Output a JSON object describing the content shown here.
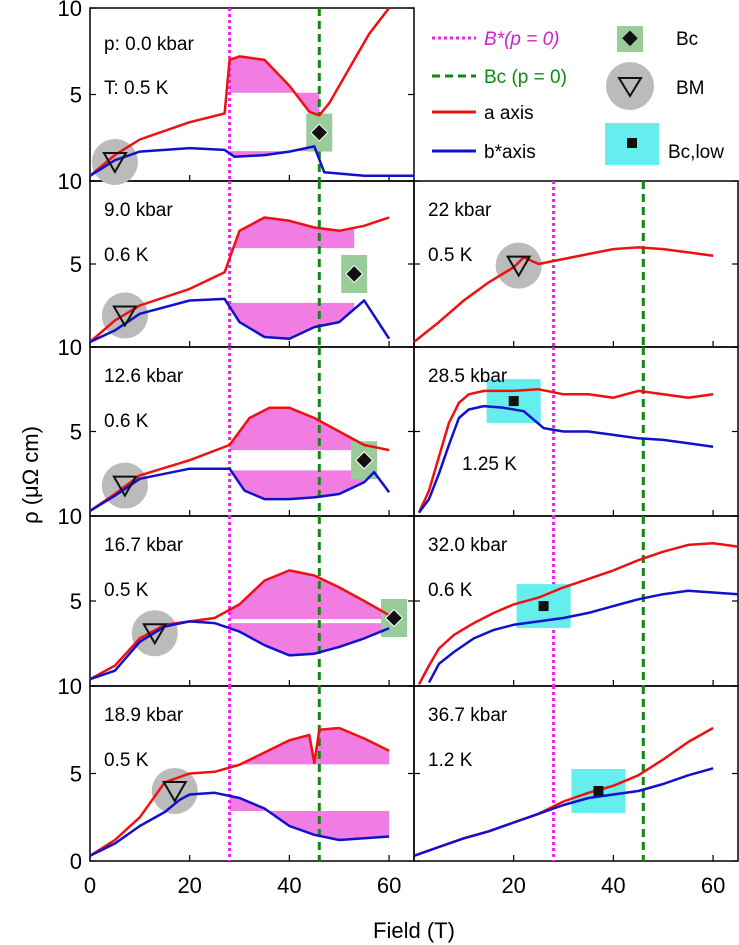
{
  "figure": {
    "xlabel": "Field (T)",
    "ylabel": "ρ (μΩ cm)",
    "x_ticks": [
      "0",
      "20",
      "40",
      "60"
    ],
    "y_ticks": [
      "0",
      "5",
      "10"
    ]
  },
  "legend": {
    "b_star": "B*(p = 0)",
    "bc_line": "Bc (p = 0)",
    "a_axis": "a axis",
    "b_axis": "b*axis",
    "bc_marker": "Bc",
    "bm_marker": "BM",
    "bc_low_marker": "Bc,low"
  },
  "colors": {
    "a_axis": "#ee1111",
    "b_axis": "#1111cc",
    "b_star_line": "#ee22ee",
    "bc_line": "#118811",
    "fill": "#ee66dd",
    "bc_box": "#99cc99",
    "bc_low_box": "#66eeee",
    "bm_circle": "#bbbbbb"
  },
  "reference_lines": {
    "b_star_field": 28,
    "bc_field": 46
  },
  "chart_data": [
    {
      "type": "line",
      "panel": "left-1",
      "pressure": "p: 0.0 kbar",
      "temperature": "T: 0.5 K",
      "xlim": [
        0,
        65
      ],
      "ylim": [
        0,
        10
      ],
      "ytick_labels": [
        "5",
        "10"
      ],
      "series": [
        {
          "name": "a axis",
          "x": [
            0,
            5,
            10,
            20,
            27,
            28,
            30,
            35,
            40,
            44,
            46,
            48,
            52,
            56,
            60
          ],
          "y": [
            0.3,
            1.5,
            2.4,
            3.4,
            3.9,
            7.0,
            7.2,
            7.0,
            5.5,
            4.0,
            3.8,
            4.5,
            6.5,
            8.5,
            10.0
          ]
        },
        {
          "name": "b* axis",
          "x": [
            0,
            5,
            10,
            20,
            27,
            29,
            35,
            40,
            45,
            47,
            55,
            65
          ],
          "y": [
            0.3,
            1.2,
            1.7,
            1.9,
            1.8,
            1.4,
            1.5,
            1.7,
            2.0,
            0.5,
            0.3,
            0.3
          ]
        }
      ],
      "bc": [
        46,
        2.8
      ],
      "bm": [
        5,
        1.1
      ]
    },
    {
      "type": "line",
      "panel": "left-2",
      "pressure": "9.0 kbar",
      "temperature": "0.6 K",
      "xlim": [
        0,
        65
      ],
      "ylim": [
        0,
        10
      ],
      "ytick_labels": [
        "5",
        "10"
      ],
      "series": [
        {
          "name": "a axis",
          "x": [
            0,
            5,
            10,
            20,
            27,
            30,
            35,
            40,
            45,
            50,
            55,
            60
          ],
          "y": [
            0.3,
            1.6,
            2.5,
            3.5,
            4.5,
            7.0,
            7.8,
            7.6,
            7.2,
            7.0,
            7.3,
            7.8
          ]
        },
        {
          "name": "b* axis",
          "x": [
            0,
            5,
            10,
            20,
            27,
            30,
            35,
            40,
            45,
            50,
            55,
            60
          ],
          "y": [
            0.3,
            1.0,
            2.0,
            2.8,
            2.9,
            1.5,
            0.6,
            0.5,
            1.2,
            1.5,
            2.8,
            0.5
          ]
        }
      ],
      "bc": [
        53,
        4.4
      ],
      "bm": [
        7,
        1.9
      ]
    },
    {
      "type": "line",
      "panel": "left-3",
      "pressure": "12.6 kbar",
      "temperature": "0.6 K",
      "xlim": [
        0,
        65
      ],
      "ylim": [
        0,
        10
      ],
      "ytick_labels": [
        "5",
        "10"
      ],
      "series": [
        {
          "name": "a axis",
          "x": [
            0,
            5,
            10,
            20,
            28,
            32,
            36,
            40,
            45,
            50,
            55,
            60
          ],
          "y": [
            0.3,
            1.3,
            2.4,
            3.3,
            4.2,
            5.8,
            6.4,
            6.4,
            5.8,
            5.0,
            4.2,
            3.9
          ]
        },
        {
          "name": "b* axis",
          "x": [
            0,
            5,
            10,
            20,
            28,
            31,
            35,
            40,
            45,
            50,
            55,
            57,
            60
          ],
          "y": [
            0.3,
            1.2,
            2.2,
            2.8,
            2.8,
            1.5,
            1.0,
            1.0,
            1.1,
            1.3,
            2.0,
            2.6,
            1.4
          ]
        }
      ],
      "bc": [
        55,
        3.3
      ],
      "bm": [
        7,
        1.8
      ]
    },
    {
      "type": "line",
      "panel": "left-4",
      "pressure": "16.7 kbar",
      "temperature": "0.5 K",
      "xlim": [
        0,
        65
      ],
      "ylim": [
        0,
        10
      ],
      "ytick_labels": [
        "5",
        "10"
      ],
      "series": [
        {
          "name": "a axis",
          "x": [
            0,
            5,
            10,
            15,
            20,
            25,
            30,
            35,
            40,
            45,
            50,
            55,
            61
          ],
          "y": [
            0.4,
            1.2,
            2.8,
            3.6,
            3.8,
            4.0,
            4.8,
            6.2,
            6.8,
            6.5,
            5.8,
            5.0,
            4.0
          ]
        },
        {
          "name": "b* axis",
          "x": [
            0,
            5,
            10,
            15,
            20,
            25,
            30,
            35,
            40,
            45,
            50,
            55,
            60
          ],
          "y": [
            0.4,
            0.9,
            2.6,
            3.5,
            3.8,
            3.7,
            3.2,
            2.4,
            1.8,
            1.9,
            2.3,
            2.8,
            3.4
          ]
        }
      ],
      "bc": [
        61,
        4.0
      ],
      "bm": [
        13,
        3.1
      ]
    },
    {
      "type": "line",
      "panel": "left-5",
      "pressure": "18.9 kbar",
      "temperature": "0.5 K",
      "xlim": [
        0,
        65
      ],
      "ylim": [
        0,
        10
      ],
      "ytick_labels": [
        "0",
        "5",
        "10"
      ],
      "series": [
        {
          "name": "a axis",
          "x": [
            0,
            5,
            10,
            15,
            20,
            25,
            30,
            35,
            40,
            44,
            45,
            46,
            50,
            55,
            60
          ],
          "y": [
            0.3,
            1.2,
            2.5,
            4.5,
            5.0,
            5.1,
            5.5,
            6.2,
            6.9,
            7.2,
            5.6,
            7.5,
            7.6,
            7.0,
            6.3
          ]
        },
        {
          "name": "b* axis",
          "x": [
            0,
            5,
            10,
            15,
            18,
            20,
            25,
            30,
            35,
            40,
            45,
            50,
            55,
            60
          ],
          "y": [
            0.3,
            1.0,
            2.0,
            2.8,
            3.5,
            3.8,
            3.9,
            3.6,
            3.0,
            2.0,
            1.5,
            1.2,
            1.3,
            1.4
          ]
        }
      ],
      "bm": [
        17,
        4.0
      ]
    },
    {
      "type": "line",
      "panel": "right-2",
      "pressure": "22 kbar",
      "temperature": "0.5 K",
      "xlim": [
        0,
        65
      ],
      "ylim": [
        0,
        10
      ],
      "series": [
        {
          "name": "a axis",
          "x": [
            0,
            5,
            10,
            15,
            20,
            22,
            25,
            30,
            35,
            40,
            45,
            50,
            55,
            60
          ],
          "y": [
            0.3,
            1.5,
            2.8,
            3.9,
            4.8,
            5.4,
            5.0,
            5.3,
            5.6,
            5.9,
            6.0,
            5.9,
            5.7,
            5.5
          ]
        }
      ],
      "bm": [
        21,
        4.9
      ]
    },
    {
      "type": "line",
      "panel": "right-3",
      "pressure": "28.5 kbar",
      "temperature": "1.25 K",
      "xlim": [
        0,
        65
      ],
      "ylim": [
        0,
        10
      ],
      "series": [
        {
          "name": "a axis",
          "x": [
            1,
            3,
            5,
            7,
            9,
            11,
            14,
            20,
            25,
            30,
            35,
            40,
            45,
            50,
            55,
            60
          ],
          "y": [
            0.2,
            1.5,
            3.5,
            5.5,
            6.7,
            7.2,
            7.4,
            7.4,
            7.5,
            7.2,
            7.2,
            7.0,
            7.4,
            7.2,
            7.0,
            7.2
          ]
        },
        {
          "name": "b* axis",
          "x": [
            1,
            3,
            5,
            7,
            9,
            11,
            14,
            18,
            22,
            26,
            30,
            35,
            40,
            45,
            50,
            55,
            60
          ],
          "y": [
            0.2,
            1.0,
            2.5,
            4.2,
            5.8,
            6.3,
            6.5,
            6.4,
            6.2,
            5.2,
            5.0,
            5.0,
            4.8,
            4.6,
            4.5,
            4.3,
            4.1
          ]
        }
      ],
      "bc_low": [
        20,
        6.8
      ]
    },
    {
      "type": "line",
      "panel": "right-4",
      "pressure": "32.0 kbar",
      "temperature": "0.6 K",
      "xlim": [
        0,
        65
      ],
      "ylim": [
        0,
        10
      ],
      "series": [
        {
          "name": "a axis",
          "x": [
            1,
            3,
            5,
            8,
            12,
            16,
            20,
            25,
            30,
            35,
            40,
            45,
            50,
            55,
            60,
            65
          ],
          "y": [
            0.1,
            1.2,
            2.2,
            3.0,
            3.7,
            4.3,
            4.8,
            5.2,
            5.8,
            6.3,
            6.8,
            7.4,
            7.9,
            8.3,
            8.4,
            8.2
          ]
        },
        {
          "name": "b* axis",
          "x": [
            3,
            5,
            8,
            12,
            16,
            20,
            25,
            30,
            35,
            40,
            45,
            50,
            55,
            60,
            65
          ],
          "y": [
            0.2,
            1.3,
            2.0,
            2.8,
            3.3,
            3.6,
            3.8,
            4.0,
            4.3,
            4.7,
            5.1,
            5.4,
            5.6,
            5.5,
            5.4
          ]
        }
      ],
      "bc_low": [
        26,
        4.7
      ]
    },
    {
      "type": "line",
      "panel": "right-5",
      "pressure": "36.7 kbar",
      "temperature": "1.2 K",
      "xlim": [
        0,
        65
      ],
      "ylim": [
        0,
        10
      ],
      "series": [
        {
          "name": "a axis",
          "x": [
            0,
            5,
            10,
            15,
            20,
            25,
            30,
            35,
            40,
            45,
            50,
            55,
            60
          ],
          "y": [
            0.3,
            0.8,
            1.3,
            1.7,
            2.2,
            2.7,
            3.4,
            3.9,
            4.3,
            4.9,
            5.8,
            6.8,
            7.6
          ]
        },
        {
          "name": "b* axis",
          "x": [
            0,
            5,
            10,
            15,
            20,
            25,
            30,
            35,
            40,
            45,
            50,
            55,
            60
          ],
          "y": [
            0.3,
            0.8,
            1.3,
            1.7,
            2.2,
            2.7,
            3.2,
            3.6,
            3.8,
            4.0,
            4.4,
            4.9,
            5.3
          ]
        }
      ],
      "bc_low": [
        37,
        4.0
      ]
    }
  ]
}
